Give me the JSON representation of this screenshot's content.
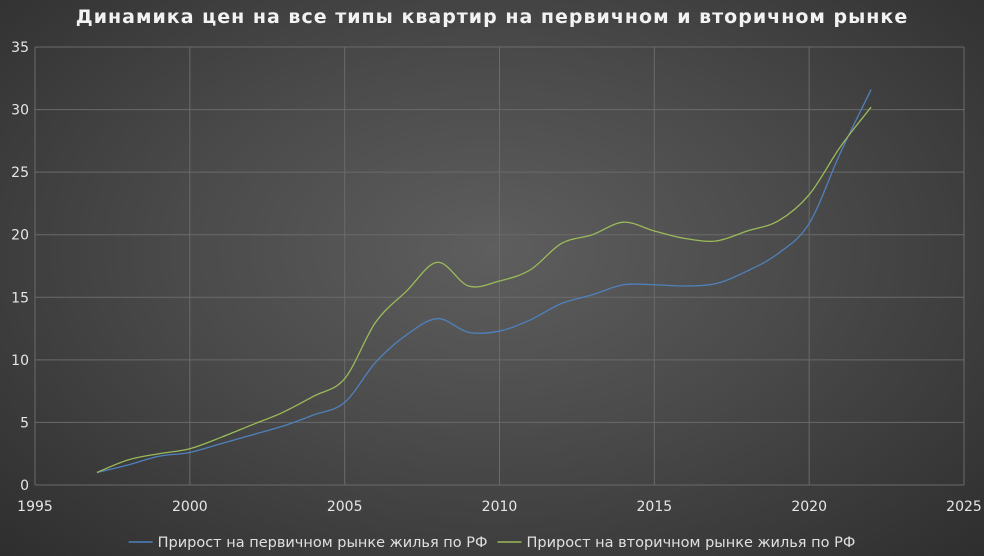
{
  "chart_data": {
    "type": "line",
    "title": "Динамика цен на все типы квартир на первичном и вторичном рынке",
    "xlabel": "",
    "ylabel": "",
    "xlim": [
      1995,
      2025
    ],
    "ylim": [
      0,
      35
    ],
    "x_ticks": [
      1995,
      2000,
      2005,
      2010,
      2015,
      2020,
      2025
    ],
    "y_ticks": [
      0,
      5,
      10,
      15,
      20,
      25,
      30,
      35
    ],
    "grid": true,
    "legend_position": "bottom",
    "series": [
      {
        "name": "Прирост на первичном рынке жилья по РФ",
        "color": "#4f81bd",
        "x": [
          1997,
          1998,
          1999,
          2000,
          2001,
          2002,
          2003,
          2004,
          2005,
          2006,
          2007,
          2008,
          2009,
          2010,
          2011,
          2012,
          2013,
          2014,
          2015,
          2016,
          2017,
          2018,
          2019,
          2020,
          2021,
          2022
        ],
        "values": [
          1.0,
          1.6,
          2.3,
          2.6,
          3.3,
          4.0,
          4.7,
          5.6,
          6.6,
          9.8,
          12.0,
          13.3,
          12.2,
          12.3,
          13.2,
          14.5,
          15.2,
          16.0,
          16.0,
          15.9,
          16.1,
          17.1,
          18.5,
          20.9,
          26.5,
          31.6
        ]
      },
      {
        "name": "Прирост на вторичном рынке жилья по РФ",
        "color": "#9bbb59",
        "x": [
          1997,
          1998,
          1999,
          2000,
          2001,
          2002,
          2003,
          2004,
          2005,
          2006,
          2007,
          2008,
          2009,
          2010,
          2011,
          2012,
          2013,
          2014,
          2015,
          2016,
          2017,
          2018,
          2019,
          2020,
          2021,
          2022
        ],
        "values": [
          1.0,
          2.0,
          2.5,
          2.9,
          3.8,
          4.8,
          5.8,
          7.1,
          8.5,
          13.0,
          15.5,
          17.8,
          15.9,
          16.3,
          17.2,
          19.3,
          20.0,
          21.0,
          20.3,
          19.7,
          19.5,
          20.3,
          21.1,
          23.2,
          27.0,
          30.2
        ]
      }
    ]
  }
}
